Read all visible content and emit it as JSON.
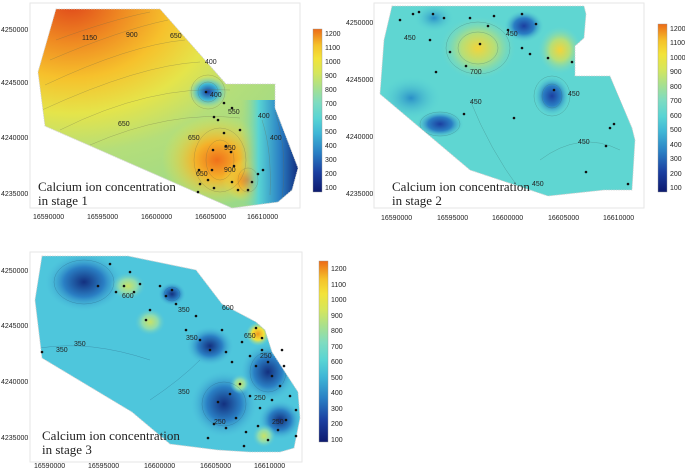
{
  "figure": {
    "panels": [
      {
        "id": "stage1",
        "label_line1": "Calcium ion concentration",
        "label_line2": "in stage 1",
        "x_ticks": [
          "16590000",
          "16595000",
          "16600000",
          "16605000",
          "16610000"
        ],
        "y_ticks": [
          "4250000",
          "4245000",
          "4240000",
          "4235000"
        ],
        "colorbar_ticks": [
          "1200",
          "1100",
          "1000",
          "900",
          "800",
          "700",
          "600",
          "500",
          "400",
          "300",
          "200",
          "100"
        ],
        "contour_labels": [
          "1150",
          "900",
          "650",
          "400",
          "650",
          "400",
          "650",
          "550",
          "400",
          "950",
          "650",
          "400",
          "900"
        ]
      },
      {
        "id": "stage2",
        "label_line1": "Calcium ion concentration",
        "label_line2": "in stage 2",
        "x_ticks": [
          "16590000",
          "16595000",
          "16600000",
          "16605000",
          "16610000"
        ],
        "y_ticks": [
          "4250000",
          "4245000",
          "4240000",
          "4235000"
        ],
        "colorbar_ticks": [
          "1200",
          "1100",
          "1000",
          "900",
          "800",
          "700",
          "600",
          "500",
          "400",
          "300",
          "200",
          "100"
        ],
        "contour_labels": [
          "450",
          "450",
          "700",
          "450",
          "450",
          "450",
          "450"
        ]
      },
      {
        "id": "stage3",
        "label_line1": "Calcium ion concentration",
        "label_line2": "in stage 3",
        "x_ticks": [
          "16590000",
          "16595000",
          "16600000",
          "16605000",
          "16610000"
        ],
        "y_ticks": [
          "4250000",
          "4245000",
          "4240000",
          "4235000"
        ],
        "colorbar_ticks": [
          "1200",
          "1100",
          "1000",
          "900",
          "800",
          "700",
          "600",
          "500",
          "400",
          "300",
          "200",
          "100"
        ],
        "contour_labels": [
          "600",
          "350",
          "350",
          "350",
          "600",
          "350",
          "250",
          "650",
          "350",
          "250",
          "250",
          "250"
        ]
      }
    ]
  },
  "colors": {
    "ramp": [
      "#0d1a6e",
      "#1b3fa0",
      "#2a7fc4",
      "#3fb6d6",
      "#58d4d4",
      "#7fdcc0",
      "#a8e08e",
      "#d5e65c",
      "#f3e339",
      "#f5c22a",
      "#f29a1f",
      "#ec6a17"
    ]
  }
}
